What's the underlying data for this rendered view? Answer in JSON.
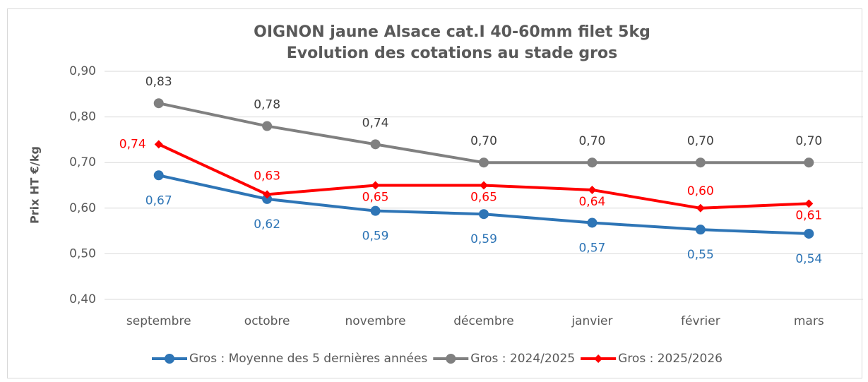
{
  "chart_data": {
    "type": "line",
    "title": "OIGNON jaune Alsace cat.I 40-60mm filet 5kg",
    "subtitle": "Evolution des cotations au stade gros",
    "y_label": "Prix HT €/kg",
    "categories": [
      "septembre",
      "octobre",
      "novembre",
      "décembre",
      "janvier",
      "février",
      "mars"
    ],
    "series": [
      {
        "name": "Gros : Moyenne des 5 dernières années",
        "color": "#2e75b6",
        "marker": "circle",
        "values": [
          0.672,
          0.62,
          0.594,
          0.587,
          0.568,
          0.553,
          0.544
        ],
        "value_labels": [
          "0,67",
          "0,62",
          "0,59",
          "0,59",
          "0,57",
          "0,55",
          "0,54"
        ]
      },
      {
        "name": "Gros : 2024/2025",
        "color": "#808080",
        "marker": "circle",
        "values": [
          0.83,
          0.78,
          0.74,
          0.7,
          0.7,
          0.7,
          0.7
        ],
        "value_labels": [
          "0,83",
          "0,78",
          "0,74",
          "0,70",
          "0,70",
          "0,70",
          "0,70"
        ]
      },
      {
        "name": "Gros : 2025/2026",
        "color": "#ff0000",
        "marker": "diamond",
        "values": [
          0.74,
          0.63,
          0.65,
          0.65,
          0.64,
          0.6,
          0.61
        ],
        "value_labels": [
          "0,74",
          "0,63",
          "0,65",
          "0,65",
          "0,64",
          "0,60",
          "0,61"
        ]
      }
    ],
    "ylim": [
      0.4,
      0.9
    ],
    "yticks": [
      {
        "value": 0.4,
        "label": "0,40"
      },
      {
        "value": 0.5,
        "label": "0,50"
      },
      {
        "value": 0.6,
        "label": "0,60"
      },
      {
        "value": 0.7,
        "label": "0,70"
      },
      {
        "value": 0.8,
        "label": "0,80"
      },
      {
        "value": 0.9,
        "label": "0,90"
      }
    ],
    "grid": true,
    "legend": "bottom"
  }
}
